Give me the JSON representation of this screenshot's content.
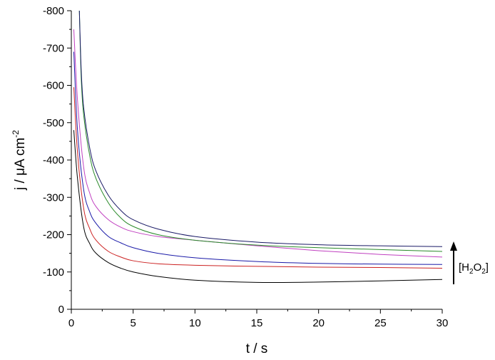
{
  "chart_data": {
    "type": "line",
    "xlabel": "t / s",
    "ylabel_main": "j / μA cm",
    "ylabel_sup": "-2",
    "xlim": [
      0,
      30
    ],
    "ylim": [
      0,
      -800
    ],
    "x_ticks": [
      "0",
      "5",
      "10",
      "15",
      "20",
      "25",
      "30"
    ],
    "y_ticks": [
      "0",
      "-100",
      "-200",
      "-300",
      "-400",
      "-500",
      "-600",
      "-700",
      "-800"
    ],
    "grid": false,
    "annotation": {
      "text_open": "[H",
      "sub1": "2",
      "text_mid": "O",
      "sub2": "2",
      "text_close": "]",
      "arrow": "up"
    },
    "series": [
      {
        "color": "#000000",
        "x": [
          0.2,
          0.5,
          1.0,
          1.5,
          2.0,
          3.0,
          4.0,
          5.0,
          7.0,
          10.0,
          15.0,
          20.0,
          25.0,
          30.0
        ],
        "y": [
          -480,
          -350,
          -220,
          -175,
          -150,
          -125,
          -110,
          -100,
          -88,
          -78,
          -72,
          -73,
          -76,
          -80
        ]
      },
      {
        "color": "#cc2222",
        "x": [
          0.2,
          0.5,
          1.0,
          1.5,
          2.0,
          3.0,
          4.0,
          5.0,
          7.0,
          10.0,
          15.0,
          20.0,
          25.0,
          30.0
        ],
        "y": [
          -595,
          -420,
          -270,
          -215,
          -185,
          -155,
          -140,
          -130,
          -122,
          -118,
          -115,
          -113,
          -112,
          -110
        ]
      },
      {
        "color": "#1a1aa8",
        "x": [
          0.2,
          0.5,
          1.0,
          1.5,
          2.0,
          3.0,
          4.0,
          5.0,
          7.0,
          10.0,
          15.0,
          20.0,
          25.0,
          30.0
        ],
        "y": [
          -690,
          -480,
          -320,
          -260,
          -230,
          -195,
          -178,
          -165,
          -150,
          -138,
          -128,
          -123,
          -121,
          -120
        ]
      },
      {
        "color": "#c040c0",
        "x": [
          0.2,
          0.5,
          1.0,
          1.5,
          2.0,
          3.0,
          4.0,
          5.0,
          7.0,
          10.0,
          15.0,
          20.0,
          25.0,
          30.0
        ],
        "y": [
          -750,
          -560,
          -380,
          -310,
          -275,
          -240,
          -220,
          -208,
          -195,
          -185,
          -170,
          -157,
          -147,
          -140
        ]
      },
      {
        "color": "#2a8a2a",
        "x": [
          0.65,
          0.8,
          1.0,
          1.5,
          2.0,
          3.0,
          4.0,
          5.0,
          7.0,
          10.0,
          15.0,
          20.0,
          25.0,
          30.0
        ],
        "y": [
          -800,
          -620,
          -520,
          -410,
          -350,
          -285,
          -245,
          -222,
          -200,
          -185,
          -172,
          -165,
          -160,
          -155
        ]
      },
      {
        "color": "#1a1a66",
        "x": [
          0.65,
          0.8,
          1.0,
          1.5,
          2.0,
          3.0,
          4.0,
          5.0,
          7.0,
          10.0,
          15.0,
          20.0,
          25.0,
          30.0
        ],
        "y": [
          -800,
          -640,
          -540,
          -430,
          -370,
          -305,
          -265,
          -240,
          -215,
          -195,
          -180,
          -173,
          -170,
          -168
        ]
      }
    ]
  }
}
